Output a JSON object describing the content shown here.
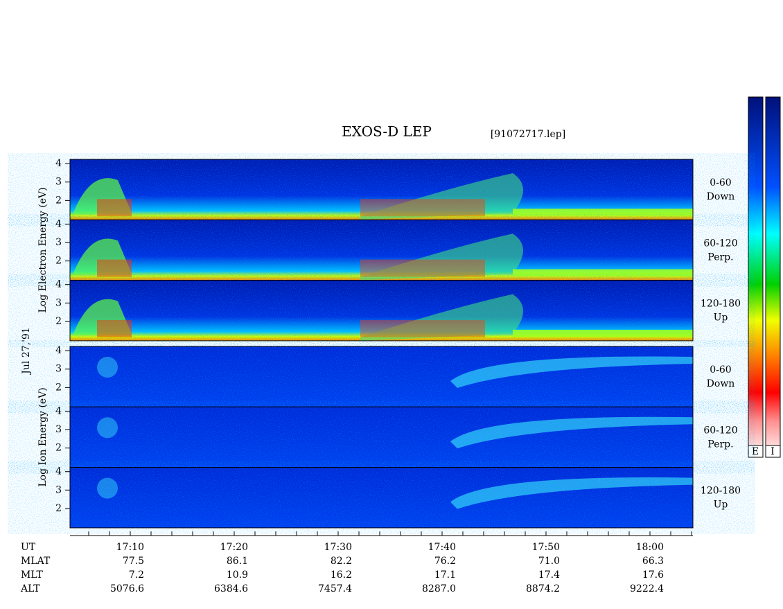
{
  "title": "EXOS-D LEP",
  "file": "[91072717.lep]",
  "date": "Jul 27,'91",
  "ylim": [
    0.95,
    4.23
  ],
  "yticks": [
    2,
    3,
    4
  ],
  "electron": {
    "axis_label": "Log  Electron  Energy (eV)",
    "panels": [
      {
        "pitch": "0-60",
        "dir": "Down"
      },
      {
        "pitch": "60-120",
        "dir": "Perp."
      },
      {
        "pitch": "120-180",
        "dir": "Up"
      }
    ]
  },
  "ion": {
    "axis_label": "Log  Ion  Energy (eV)",
    "panels": [
      {
        "pitch": "0-60",
        "dir": "Down"
      },
      {
        "pitch": "60-120",
        "dir": "Perp."
      },
      {
        "pitch": "120-180",
        "dir": "Up"
      }
    ]
  },
  "colorbar_labels": [
    "E",
    "I"
  ],
  "orbit": [
    {
      "name": "UT",
      "values": [
        "17:10",
        "17:20",
        "17:30",
        "17:40",
        "17:50",
        "18:00"
      ]
    },
    {
      "name": "MLAT",
      "values": [
        "77.5",
        "86.1",
        "82.2",
        "76.2",
        "71.0",
        "66.3"
      ]
    },
    {
      "name": "MLT",
      "values": [
        "7.2",
        "10.9",
        "16.2",
        "17.1",
        "17.4",
        "17.6"
      ]
    },
    {
      "name": "ALT",
      "values": [
        "5076.6",
        "6384.6",
        "7457.4",
        "8287.0",
        "8874.2",
        "9222.4"
      ]
    }
  ]
}
